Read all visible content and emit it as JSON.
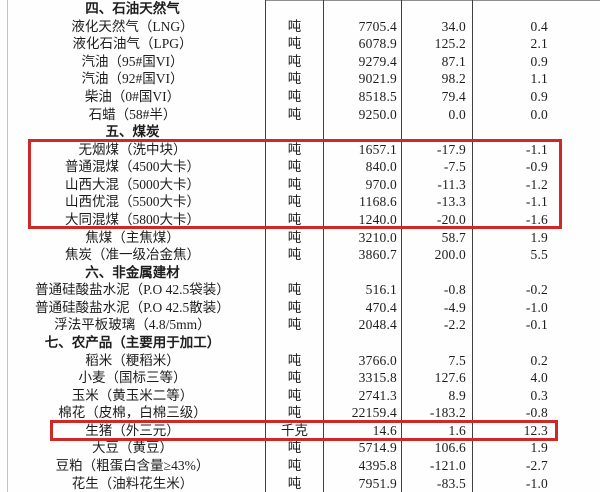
{
  "page": {
    "description": "流通领域重要生产资料市场价格统计表（截图局部）",
    "background": "#fefefe"
  },
  "colors": {
    "highlight_red": "#cd2a27",
    "grid_line": "#3f3f3f",
    "text": "#1d1d1d"
  },
  "table": {
    "rows": [
      {
        "type": "section",
        "name": "四、石油天然气",
        "unit": "",
        "price": "",
        "change": "",
        "pct": "",
        "highlighted": false
      },
      {
        "type": "item",
        "name": "液化天然气（LNG）",
        "unit": "吨",
        "price": "7705.4",
        "change": "34.0",
        "pct": "0.4",
        "highlighted": false
      },
      {
        "type": "item",
        "name": "液化石油气（LPG）",
        "unit": "吨",
        "price": "6078.9",
        "change": "125.2",
        "pct": "2.1",
        "highlighted": false
      },
      {
        "type": "item",
        "name": "汽油（95#国VI）",
        "unit": "吨",
        "price": "9279.4",
        "change": "87.1",
        "pct": "0.9",
        "highlighted": false
      },
      {
        "type": "item",
        "name": "汽油（92#国VI）",
        "unit": "吨",
        "price": "9021.9",
        "change": "98.2",
        "pct": "1.1",
        "highlighted": false
      },
      {
        "type": "item",
        "name": "柴油（0#国VI）",
        "unit": "吨",
        "price": "8518.5",
        "change": "79.4",
        "pct": "0.9",
        "highlighted": false
      },
      {
        "type": "item",
        "name": "石蜡（58#半）",
        "unit": "吨",
        "price": "9250.0",
        "change": "0.0",
        "pct": "0.0",
        "highlighted": false
      },
      {
        "type": "section",
        "name": "五、煤炭",
        "unit": "",
        "price": "",
        "change": "",
        "pct": "",
        "highlighted": false
      },
      {
        "type": "item",
        "name": "无烟煤（洗中块）",
        "unit": "吨",
        "price": "1657.1",
        "change": "-17.9",
        "pct": "-1.1",
        "highlighted": true
      },
      {
        "type": "item",
        "name": "普通混煤（4500大卡）",
        "unit": "吨",
        "price": "840.0",
        "change": "-7.5",
        "pct": "-0.9",
        "highlighted": true
      },
      {
        "type": "item",
        "name": "山西大混（5000大卡）",
        "unit": "吨",
        "price": "970.0",
        "change": "-11.3",
        "pct": "-1.2",
        "highlighted": true
      },
      {
        "type": "item",
        "name": "山西优混（5500大卡）",
        "unit": "吨",
        "price": "1168.6",
        "change": "-13.3",
        "pct": "-1.1",
        "highlighted": true
      },
      {
        "type": "item",
        "name": "大同混煤（5800大卡）",
        "unit": "吨",
        "price": "1240.0",
        "change": "-20.0",
        "pct": "-1.6",
        "highlighted": true
      },
      {
        "type": "item",
        "name": "焦煤（主焦煤）",
        "unit": "吨",
        "price": "3210.0",
        "change": "58.7",
        "pct": "1.9",
        "highlighted": false
      },
      {
        "type": "item",
        "name": "焦炭（准一级冶金焦）",
        "unit": "吨",
        "price": "3860.7",
        "change": "200.0",
        "pct": "5.5",
        "highlighted": false
      },
      {
        "type": "section",
        "name": "六、非金属建材",
        "unit": "",
        "price": "",
        "change": "",
        "pct": "",
        "highlighted": false
      },
      {
        "type": "item",
        "name": "普通硅酸盐水泥（P.O 42.5袋装）",
        "unit": "吨",
        "price": "516.1",
        "change": "-0.8",
        "pct": "-0.2",
        "highlighted": false
      },
      {
        "type": "item",
        "name": "普通硅酸盐水泥（P.O 42.5散装）",
        "unit": "吨",
        "price": "470.4",
        "change": "-4.9",
        "pct": "-1.0",
        "highlighted": false
      },
      {
        "type": "item",
        "name": "浮法平板玻璃（4.8/5mm）",
        "unit": "吨",
        "price": "2048.4",
        "change": "-2.2",
        "pct": "-0.1",
        "highlighted": false
      },
      {
        "type": "section",
        "name": "七、农产品（主要用于加工）",
        "unit": "",
        "price": "",
        "change": "",
        "pct": "",
        "highlighted": false
      },
      {
        "type": "item",
        "name": "稻米（粳稻米）",
        "unit": "吨",
        "price": "3766.0",
        "change": "7.5",
        "pct": "0.2",
        "highlighted": false
      },
      {
        "type": "item",
        "name": "小麦（国标三等）",
        "unit": "吨",
        "price": "3315.8",
        "change": "127.6",
        "pct": "4.0",
        "highlighted": false
      },
      {
        "type": "item",
        "name": "玉米（黄玉米二等）",
        "unit": "吨",
        "price": "2741.3",
        "change": "8.9",
        "pct": "0.3",
        "highlighted": false
      },
      {
        "type": "item",
        "name": "棉花（皮棉，白棉三级）",
        "unit": "吨",
        "price": "22159.4",
        "change": "-183.2",
        "pct": "-0.8",
        "highlighted": false
      },
      {
        "type": "item",
        "name": "生猪（外三元）",
        "unit": "千克",
        "price": "14.6",
        "change": "1.6",
        "pct": "12.3",
        "highlighted": true
      },
      {
        "type": "item",
        "name": "大豆（黄豆）",
        "unit": "吨",
        "price": "5714.9",
        "change": "106.6",
        "pct": "1.9",
        "highlighted": false
      },
      {
        "type": "item",
        "name": "豆粕（粗蛋白含量≥43%）",
        "unit": "吨",
        "price": "4395.8",
        "change": "-121.0",
        "pct": "-2.7",
        "highlighted": false
      },
      {
        "type": "item",
        "name": "花生（油料花生米）",
        "unit": "吨",
        "price": "7951.9",
        "change": "-83.5",
        "pct": "-1.0",
        "highlighted": false
      }
    ]
  },
  "annotations": {
    "highlight_boxes": [
      {
        "label": "煤炭价格下跌行（无烟煤至大同混煤）"
      },
      {
        "label": "生猪（外三元）价格上涨行"
      }
    ]
  }
}
